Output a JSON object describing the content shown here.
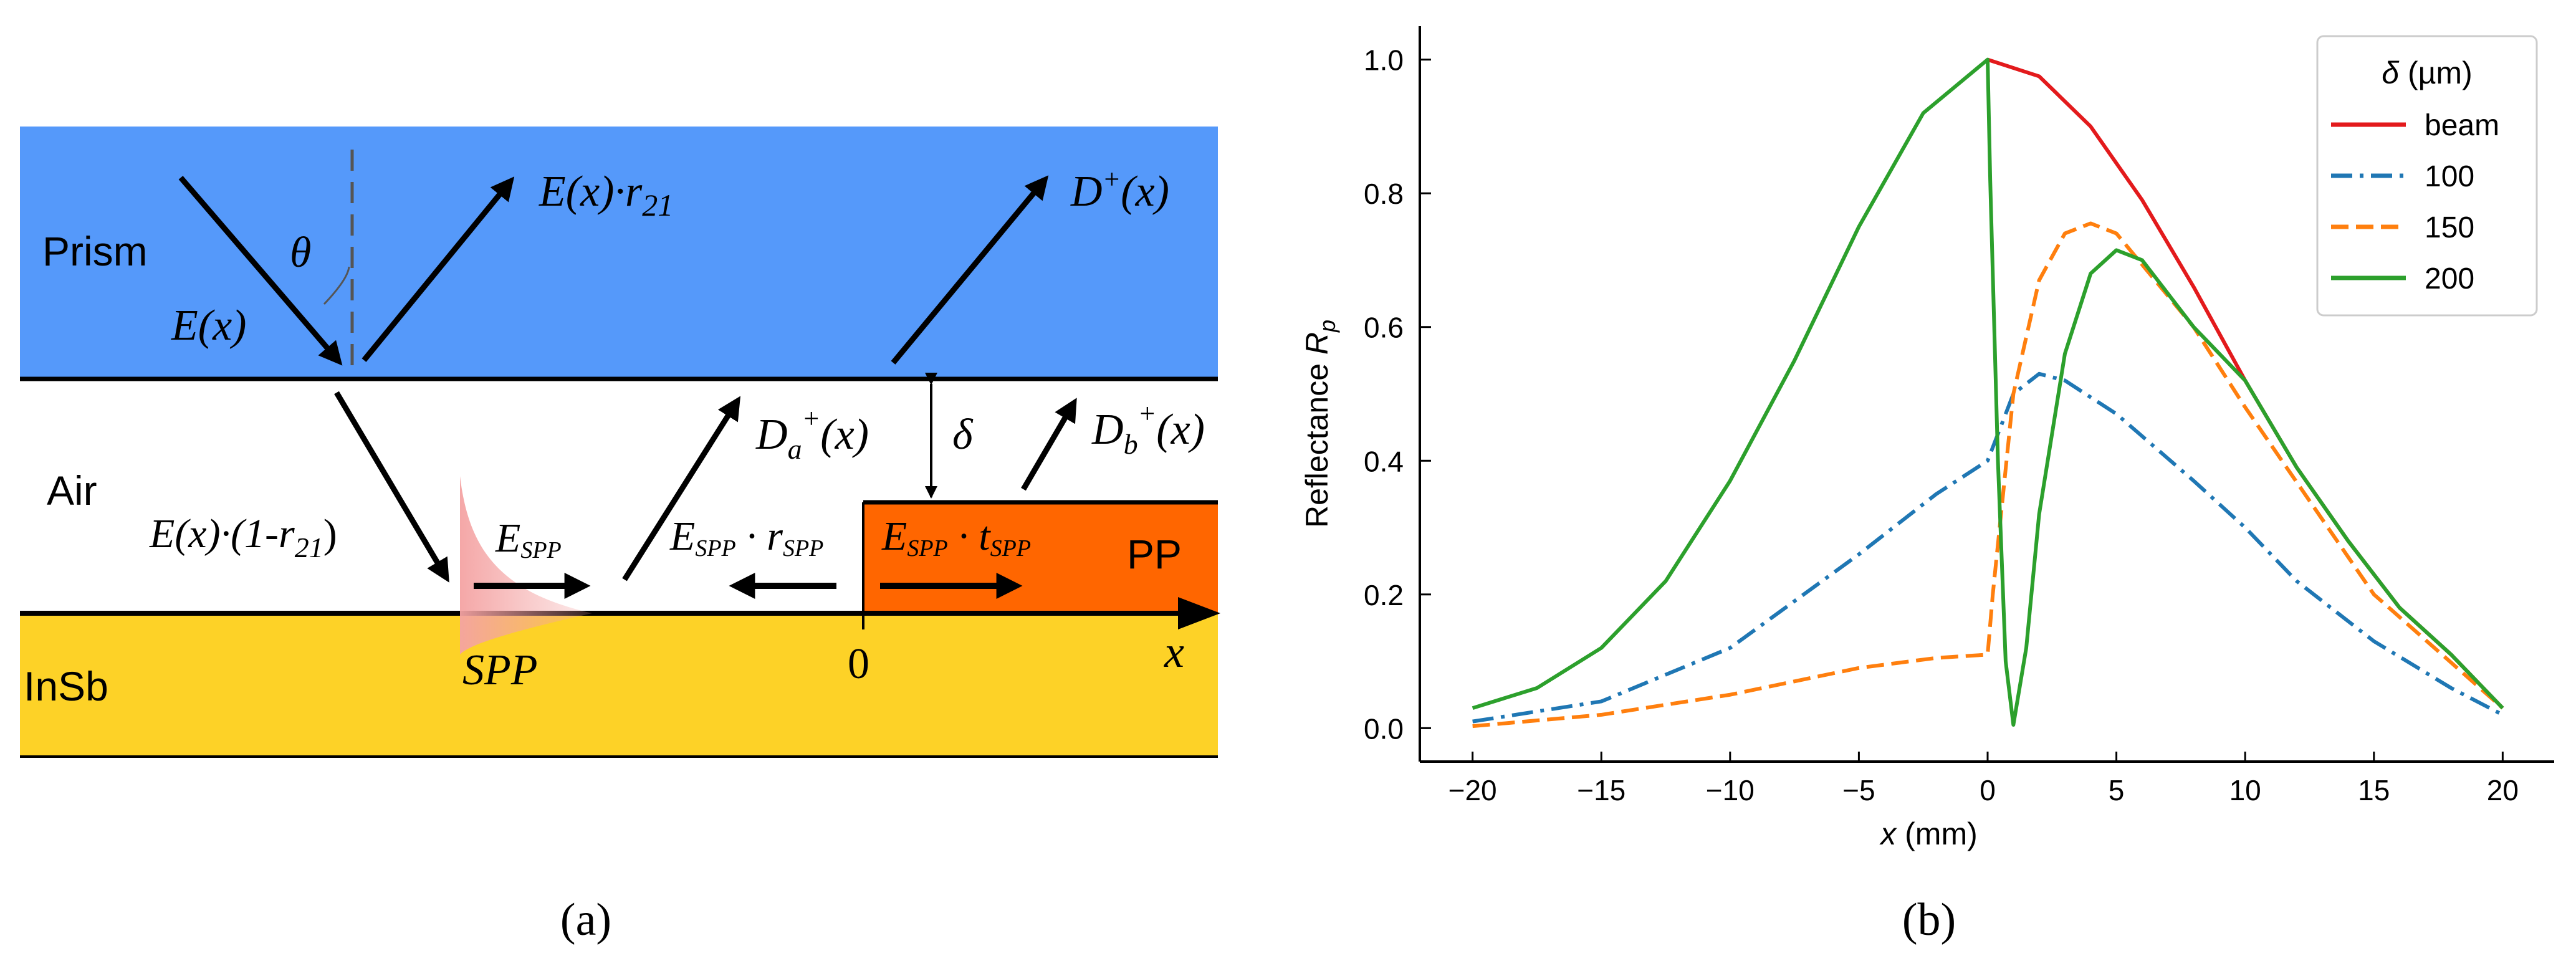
{
  "panel_a": {
    "caption": "(a)",
    "layers": {
      "prism": "Prism",
      "air": "Air",
      "insb": "InSb",
      "pp": "PP"
    },
    "labels": {
      "theta": "θ",
      "E": "E(x)",
      "Er21": "E(x)·r",
      "Er21_sub": "21",
      "Dplus": "D",
      "Dplus_sup": "+",
      "Dplus_arg": "(x)",
      "Da": "D",
      "Da_sub": "a",
      "Da_sup": "+",
      "Da_arg": "(x)",
      "delta": "δ",
      "Db": "D",
      "Db_sub": "b",
      "Db_sup": "+",
      "Db_arg": "(x)",
      "Ein": "E(x)·(1-r",
      "Ein_sub": "21",
      "Ein_close": ")",
      "Espp": "E",
      "Espp_sub": "SPP",
      "Erspp": "E",
      "Erspp_sub": "SPP",
      "Erspp_mid": " · r",
      "Erspp_sub2": "SPP",
      "Etspp": "E",
      "Etspp_sub": "SPP",
      "Etspp_mid": " · t",
      "Etspp_sub2": "SPP",
      "spp": "SPP",
      "zero": "0",
      "x": "x"
    },
    "colors": {
      "prism": "#5599fa",
      "air": "#ffffff",
      "insb": "#fdd227",
      "pp": "#ff6600",
      "spp": "#f5a0a0"
    }
  },
  "panel_b": {
    "caption": "(b)"
  },
  "chart_data": {
    "type": "line",
    "title": "",
    "xlabel_var": "x",
    "xlabel_unit": " (mm)",
    "ylabel_text": "Reflectance ",
    "ylabel_var": "R",
    "ylabel_sub": "p",
    "xlim": [
      -22,
      22
    ],
    "ylim": [
      -0.05,
      1.05
    ],
    "xticks": [
      -20,
      -15,
      -10,
      -5,
      0,
      5,
      10,
      15,
      20
    ],
    "xtick_labels": [
      "−20",
      "−15",
      "−10",
      "−5",
      "0",
      "5",
      "10",
      "15",
      "20"
    ],
    "yticks": [
      0.0,
      0.2,
      0.4,
      0.6,
      0.8,
      1.0
    ],
    "ytick_labels": [
      "0.0",
      "0.2",
      "0.4",
      "0.6",
      "0.8",
      "1.0"
    ],
    "legend_title_var": "δ",
    "legend_title_unit": " (µm)",
    "legend_position": "top-right",
    "series": [
      {
        "name": "beam",
        "color": "#e31a1c",
        "dash": "solid",
        "x": [
          0,
          2,
          4,
          6,
          8,
          10,
          12,
          14,
          16,
          18,
          20
        ],
        "y": [
          1.0,
          0.975,
          0.9,
          0.79,
          0.66,
          0.52,
          0.39,
          0.28,
          0.18,
          0.11,
          0.03
        ]
      },
      {
        "name": "100",
        "color": "#1f77b4",
        "dash": "dashdot",
        "x": [
          -20,
          -15,
          -10,
          -5,
          -2,
          0,
          0.5,
          1,
          2,
          3,
          5,
          8,
          10,
          12,
          15,
          18,
          20
        ],
        "y": [
          0.01,
          0.04,
          0.12,
          0.26,
          0.35,
          0.4,
          0.45,
          0.5,
          0.53,
          0.52,
          0.47,
          0.37,
          0.3,
          0.22,
          0.13,
          0.06,
          0.02
        ]
      },
      {
        "name": "150",
        "color": "#ff7f0e",
        "dash": "dashed",
        "x": [
          -20,
          -15,
          -10,
          -5,
          -2,
          0,
          0.2,
          1,
          2,
          3,
          4,
          5,
          8,
          10,
          15,
          20
        ],
        "y": [
          0.003,
          0.02,
          0.05,
          0.09,
          0.105,
          0.11,
          0.2,
          0.5,
          0.67,
          0.74,
          0.755,
          0.74,
          0.6,
          0.48,
          0.2,
          0.03
        ]
      },
      {
        "name": "200",
        "color": "#2ca02c",
        "dash": "solid",
        "x": [
          -20,
          -17.5,
          -15,
          -12.5,
          -10,
          -7.5,
          -5,
          -2.5,
          0,
          0.1,
          0.4,
          0.7,
          1,
          1.5,
          2,
          3,
          4,
          5,
          6,
          8,
          10,
          12,
          14,
          16,
          18,
          20
        ],
        "y": [
          0.03,
          0.06,
          0.12,
          0.22,
          0.37,
          0.55,
          0.75,
          0.92,
          1.0,
          0.82,
          0.4,
          0.1,
          0.005,
          0.12,
          0.32,
          0.56,
          0.68,
          0.715,
          0.7,
          0.6,
          0.52,
          0.39,
          0.28,
          0.18,
          0.11,
          0.03
        ]
      }
    ]
  }
}
